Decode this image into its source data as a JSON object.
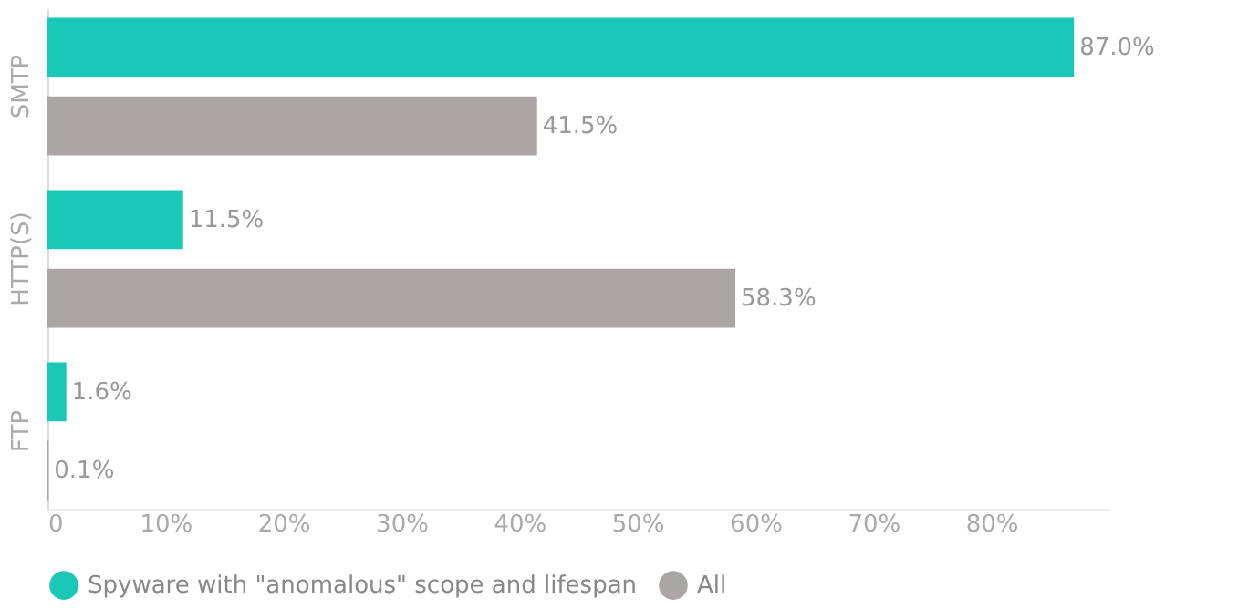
{
  "chart_data": {
    "type": "bar",
    "orientation": "horizontal",
    "categories": [
      "SMTP",
      "HTTP(S)",
      "FTP"
    ],
    "series": [
      {
        "name": "Spyware with \"anomalous\" scope and lifespan",
        "color": "#1ac8b8",
        "values": [
          87.0,
          11.5,
          1.6
        ],
        "value_labels": [
          "87.0%",
          "11.5%",
          "1.6%"
        ]
      },
      {
        "name": "All",
        "color": "#aaa6a6",
        "values": [
          41.5,
          58.3,
          0.1
        ],
        "value_labels": [
          "41.5%",
          "58.3%",
          "0.1%"
        ]
      }
    ],
    "xlim": [
      0,
      90
    ],
    "xticks": [
      {
        "value": 0,
        "label": "0"
      },
      {
        "value": 10,
        "label": "10%"
      },
      {
        "value": 20,
        "label": "20%"
      },
      {
        "value": 30,
        "label": "30%"
      },
      {
        "value": 40,
        "label": "40%"
      },
      {
        "value": 50,
        "label": "50%"
      },
      {
        "value": 60,
        "label": "60%"
      },
      {
        "value": 70,
        "label": "70%"
      },
      {
        "value": 80,
        "label": "80%"
      }
    ],
    "grid": false,
    "legend": "bottom"
  }
}
